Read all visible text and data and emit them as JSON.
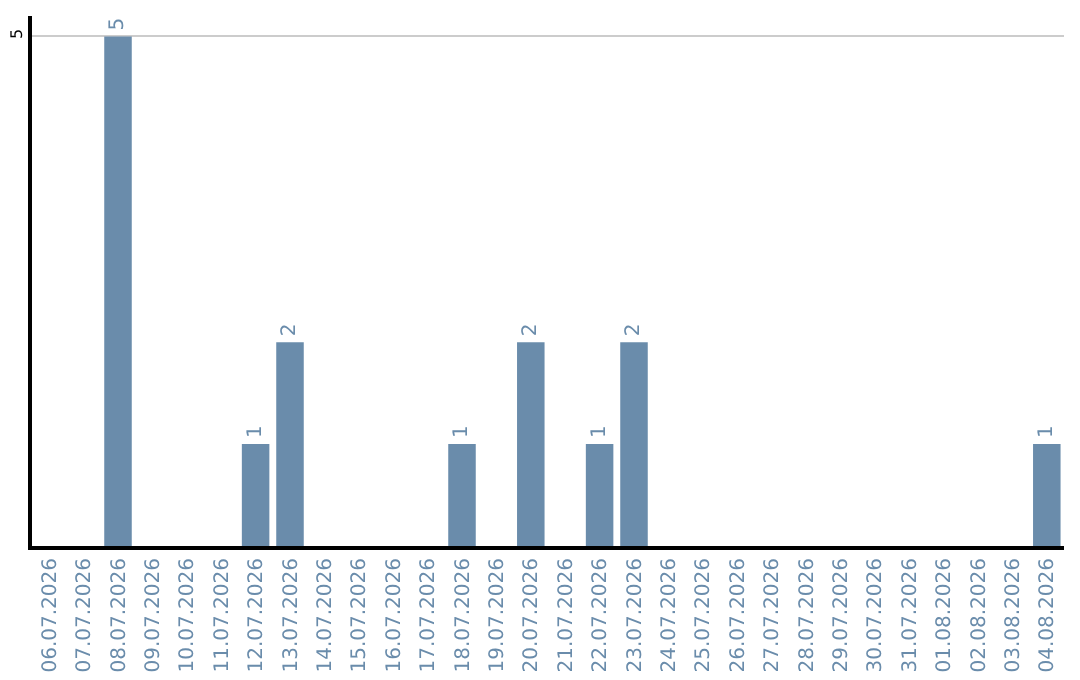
{
  "chart_data": {
    "type": "bar",
    "categories": [
      "06.07.2026",
      "07.07.2026",
      "08.07.2026",
      "09.07.2026",
      "10.07.2026",
      "11.07.2026",
      "12.07.2026",
      "13.07.2026",
      "14.07.2026",
      "15.07.2026",
      "16.07.2026",
      "17.07.2026",
      "18.07.2026",
      "19.07.2026",
      "20.07.2026",
      "21.07.2026",
      "22.07.2026",
      "23.07.2026",
      "24.07.2026",
      "25.07.2026",
      "26.07.2026",
      "27.07.2026",
      "28.07.2026",
      "29.07.2026",
      "30.07.2026",
      "31.07.2026",
      "01.08.2026",
      "02.08.2026",
      "03.08.2026",
      "04.08.2026"
    ],
    "values": [
      0,
      0,
      5,
      0,
      0,
      0,
      1,
      2,
      0,
      0,
      0,
      0,
      1,
      0,
      2,
      0,
      1,
      2,
      0,
      0,
      0,
      0,
      0,
      0,
      0,
      0,
      0,
      0,
      0,
      1
    ],
    "value_labels": [
      null,
      null,
      "5",
      null,
      null,
      null,
      "1",
      "2",
      null,
      null,
      null,
      null,
      "1",
      null,
      "2",
      null,
      "1",
      "2",
      null,
      null,
      null,
      null,
      null,
      null,
      null,
      null,
      null,
      null,
      null,
      "1"
    ],
    "color": "#6a8cab",
    "ylim": [
      0,
      5.2
    ],
    "yticks": [
      5
    ],
    "grid": "y",
    "legend": false
  }
}
